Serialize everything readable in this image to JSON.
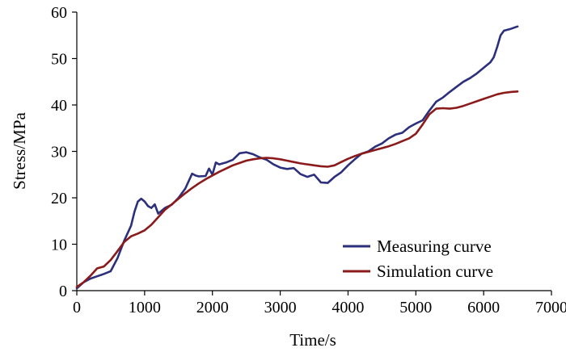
{
  "chart_data": {
    "type": "line",
    "xlabel": "Time/s",
    "ylabel": "Stress/MPa",
    "xlim": [
      0,
      7000
    ],
    "ylim": [
      0,
      60
    ],
    "x_ticks": [
      "0",
      "1000",
      "2000",
      "3000",
      "4000",
      "5000",
      "6000",
      "7000"
    ],
    "y_ticks": [
      "0",
      "10",
      "20",
      "30",
      "40",
      "50",
      "60"
    ],
    "legend_position": "bottom-right",
    "grid": false,
    "series": [
      {
        "name": "Measuring curve",
        "color": "#2b2f7c",
        "points": [
          [
            0,
            0.5
          ],
          [
            100,
            1.8
          ],
          [
            200,
            2.6
          ],
          [
            300,
            3.1
          ],
          [
            400,
            3.6
          ],
          [
            500,
            4.2
          ],
          [
            600,
            7.0
          ],
          [
            700,
            10.8
          ],
          [
            800,
            14.0
          ],
          [
            850,
            17.0
          ],
          [
            900,
            19.2
          ],
          [
            950,
            19.8
          ],
          [
            1000,
            19.2
          ],
          [
            1050,
            18.2
          ],
          [
            1100,
            17.8
          ],
          [
            1150,
            18.6
          ],
          [
            1200,
            16.6
          ],
          [
            1300,
            17.8
          ],
          [
            1400,
            18.5
          ],
          [
            1500,
            20.0
          ],
          [
            1600,
            22.0
          ],
          [
            1700,
            25.2
          ],
          [
            1750,
            24.8
          ],
          [
            1800,
            24.6
          ],
          [
            1900,
            24.7
          ],
          [
            1950,
            26.3
          ],
          [
            2000,
            25.0
          ],
          [
            2050,
            27.6
          ],
          [
            2100,
            27.2
          ],
          [
            2200,
            27.6
          ],
          [
            2300,
            28.2
          ],
          [
            2400,
            29.6
          ],
          [
            2500,
            29.8
          ],
          [
            2600,
            29.4
          ],
          [
            2700,
            28.7
          ],
          [
            2800,
            28.2
          ],
          [
            2900,
            27.2
          ],
          [
            3000,
            26.5
          ],
          [
            3100,
            26.2
          ],
          [
            3200,
            26.4
          ],
          [
            3300,
            25.1
          ],
          [
            3400,
            24.5
          ],
          [
            3500,
            25.0
          ],
          [
            3600,
            23.3
          ],
          [
            3700,
            23.2
          ],
          [
            3800,
            24.5
          ],
          [
            3900,
            25.5
          ],
          [
            4000,
            27.0
          ],
          [
            4100,
            28.3
          ],
          [
            4200,
            29.5
          ],
          [
            4300,
            30.0
          ],
          [
            4400,
            31.0
          ],
          [
            4500,
            31.7
          ],
          [
            4600,
            32.8
          ],
          [
            4700,
            33.6
          ],
          [
            4800,
            34.0
          ],
          [
            4900,
            35.2
          ],
          [
            5000,
            36.0
          ],
          [
            5100,
            36.7
          ],
          [
            5200,
            38.8
          ],
          [
            5300,
            40.7
          ],
          [
            5400,
            41.6
          ],
          [
            5500,
            42.8
          ],
          [
            5600,
            43.9
          ],
          [
            5700,
            45.0
          ],
          [
            5800,
            45.8
          ],
          [
            5900,
            46.8
          ],
          [
            6000,
            48.0
          ],
          [
            6100,
            49.2
          ],
          [
            6150,
            50.3
          ],
          [
            6200,
            52.5
          ],
          [
            6250,
            55.0
          ],
          [
            6300,
            56.0
          ],
          [
            6400,
            56.4
          ],
          [
            6500,
            56.9
          ]
        ]
      },
      {
        "name": "Simulation curve",
        "color": "#8b1a1a",
        "points": [
          [
            0,
            0.8
          ],
          [
            100,
            1.8
          ],
          [
            200,
            3.2
          ],
          [
            300,
            4.8
          ],
          [
            400,
            5.2
          ],
          [
            500,
            6.6
          ],
          [
            600,
            8.5
          ],
          [
            700,
            10.5
          ],
          [
            800,
            11.7
          ],
          [
            900,
            12.3
          ],
          [
            1000,
            13.0
          ],
          [
            1100,
            14.2
          ],
          [
            1200,
            15.8
          ],
          [
            1300,
            17.4
          ],
          [
            1400,
            18.6
          ],
          [
            1500,
            19.8
          ],
          [
            1600,
            21.0
          ],
          [
            1700,
            22.1
          ],
          [
            1800,
            23.1
          ],
          [
            1900,
            24.0
          ],
          [
            2000,
            24.8
          ],
          [
            2100,
            25.6
          ],
          [
            2200,
            26.3
          ],
          [
            2300,
            27.0
          ],
          [
            2400,
            27.5
          ],
          [
            2500,
            28.0
          ],
          [
            2600,
            28.3
          ],
          [
            2700,
            28.5
          ],
          [
            2800,
            28.6
          ],
          [
            2900,
            28.5
          ],
          [
            3000,
            28.3
          ],
          [
            3100,
            28.0
          ],
          [
            3200,
            27.7
          ],
          [
            3300,
            27.4
          ],
          [
            3400,
            27.2
          ],
          [
            3500,
            27.0
          ],
          [
            3600,
            26.8
          ],
          [
            3700,
            26.7
          ],
          [
            3800,
            27.0
          ],
          [
            3900,
            27.7
          ],
          [
            4000,
            28.4
          ],
          [
            4100,
            29.0
          ],
          [
            4200,
            29.5
          ],
          [
            4300,
            29.9
          ],
          [
            4400,
            30.3
          ],
          [
            4500,
            30.7
          ],
          [
            4600,
            31.1
          ],
          [
            4700,
            31.6
          ],
          [
            4800,
            32.2
          ],
          [
            4900,
            32.8
          ],
          [
            5000,
            33.8
          ],
          [
            5100,
            35.8
          ],
          [
            5200,
            38.0
          ],
          [
            5300,
            39.2
          ],
          [
            5400,
            39.3
          ],
          [
            5500,
            39.2
          ],
          [
            5600,
            39.4
          ],
          [
            5700,
            39.8
          ],
          [
            5800,
            40.3
          ],
          [
            5900,
            40.8
          ],
          [
            6000,
            41.3
          ],
          [
            6100,
            41.8
          ],
          [
            6200,
            42.3
          ],
          [
            6300,
            42.6
          ],
          [
            6400,
            42.8
          ],
          [
            6500,
            42.9
          ]
        ]
      }
    ]
  }
}
